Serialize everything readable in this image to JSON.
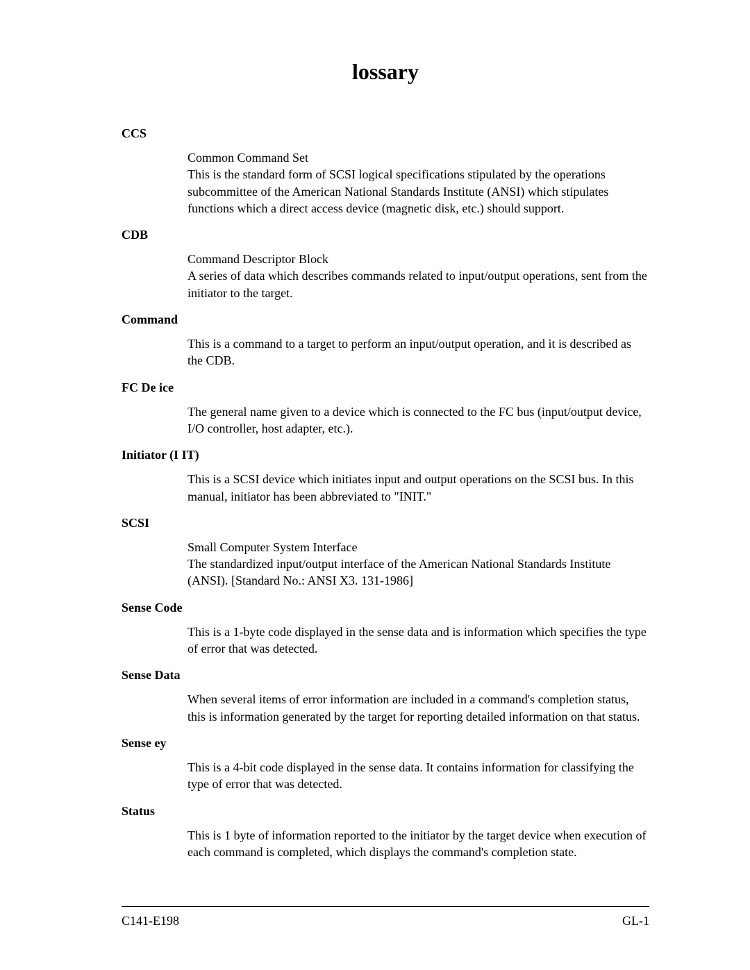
{
  "title": "lossary",
  "entries": [
    {
      "term": "CCS",
      "definition": "Common Command Set\nThis is the standard form of SCSI logical specifications stipulated by the operations subcommittee of the American National Standards Institute (ANSI) which stipulates functions which a direct access device (magnetic disk, etc.) should support."
    },
    {
      "term": "CDB",
      "definition": "Command Descriptor Block\nA series of data which describes commands related to input/output operations, sent from the initiator to the target."
    },
    {
      "term": "Command",
      "definition": "This is a command to a target to perform an input/output operation, and it is described as the CDB."
    },
    {
      "term": "FC De ice",
      "definition": "The general name given to a device which is connected to the FC bus (input/output device, I/O controller, host adapter, etc.)."
    },
    {
      "term": "Initiator  (I   IT)",
      "definition": "This is a SCSI device which initiates input and output operations on the SCSI bus.  In this manual, initiator has been abbreviated to \"INIT.\""
    },
    {
      "term": "SCSI",
      "definition": "Small Computer System Interface\nThe standardized input/output interface of the American National Standards Institute (ANSI).  [Standard No.:  ANSI X3. 131-1986]"
    },
    {
      "term": "Sense Code",
      "definition": "This is a 1-byte code displayed in the sense data and is information which specifies the type of error that was detected."
    },
    {
      "term": "Sense Data",
      "definition": "When several items of error information are included in a command's completion status, this is information generated by the target for reporting detailed information on that status."
    },
    {
      "term": "Sense   ey",
      "definition": "This is a 4-bit code displayed in the sense data.  It contains information for classifying the type of error that was detected."
    },
    {
      "term": "Status",
      "definition": "This is 1 byte of information reported to the initiator by the target device when execution of each command is completed, which displays the command's completion state."
    }
  ],
  "footer": {
    "left": "C141-E198",
    "right": "GL-1"
  }
}
